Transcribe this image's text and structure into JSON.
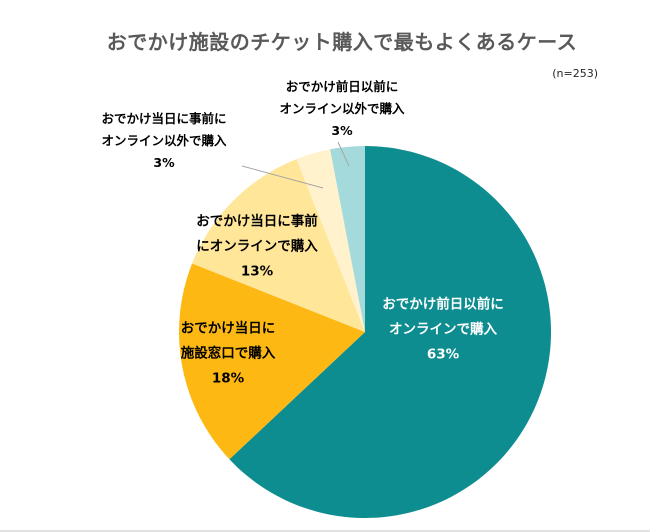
{
  "title": "おでかけ施設のチケット購入で最もよくあるケース",
  "sample_size_label": "(n=253)",
  "colors": {
    "title_gray": "#595959",
    "teal": "#0E8D90",
    "orange": "#FDB813",
    "light_yellow": "#FFE699",
    "cream": "#FFF2CC",
    "pale_teal": "#A5DADC",
    "leader_line_gray": "#A6A6A6"
  },
  "chart_data": {
    "type": "pie",
    "title": "おでかけ施設のチケット購入で最もよくあるケース",
    "annotation": "(n=253)",
    "sample_size": 253,
    "start_angle_deg": 0,
    "direction": "clockwise",
    "legend_position": "none",
    "slices": [
      {
        "label": "おでかけ前日以前にオンラインで購入",
        "value": 63,
        "color": "#0E8D90",
        "label_lines": [
          "おでかけ前日以前に",
          "オンラインで購入",
          "63%"
        ],
        "label_position": "inside"
      },
      {
        "label": "おでかけ当日に施設窓口で購入",
        "value": 18,
        "color": "#FDB813",
        "label_lines": [
          "おでかけ当日に",
          "施設窓口で購入",
          "18%"
        ],
        "label_position": "inside"
      },
      {
        "label": "おでかけ当日に事前にオンラインで購入",
        "value": 13,
        "color": "#FFE699",
        "label_lines": [
          "おでかけ当日に事前",
          "にオンラインで購入",
          "13%"
        ],
        "label_position": "inside"
      },
      {
        "label": "おでかけ当日に事前にオンライン以外で購入",
        "value": 3,
        "color": "#FFF2CC",
        "label_lines": [
          "おでかけ当日に事前に",
          "オンライン以外で購入",
          "3%"
        ],
        "label_position": "outside"
      },
      {
        "label": "おでかけ前日以前にオンライン以外で購入",
        "value": 3,
        "color": "#A5DADC",
        "label_lines": [
          "おでかけ前日以前に",
          "オンライン以外で購入",
          "3%"
        ],
        "label_position": "outside"
      }
    ]
  }
}
